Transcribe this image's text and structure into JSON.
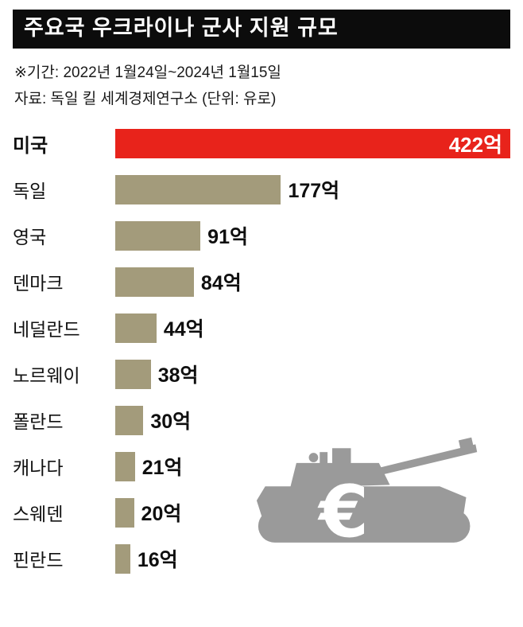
{
  "header": {
    "title": "주요국 우크라이나 군사 지원 규모"
  },
  "meta": {
    "period": "※기간: 2022년 1월24일~2024년 1월15일",
    "source": "자료: 독일 킬 세계경제연구소 (단위: 유로)"
  },
  "chart_data": {
    "type": "bar",
    "orientation": "horizontal",
    "title": "주요국 우크라이나 군사 지원 규모",
    "unit": "억 유로",
    "categories": [
      "미국",
      "독일",
      "영국",
      "덴마크",
      "네덜란드",
      "노르웨이",
      "폴란드",
      "캐나다",
      "스웨덴",
      "핀란드"
    ],
    "values": [
      422,
      177,
      91,
      84,
      44,
      38,
      30,
      21,
      20,
      16
    ],
    "value_labels": [
      "422억",
      "177억",
      "91억",
      "84억",
      "44억",
      "38억",
      "30억",
      "21억",
      "20억",
      "16억"
    ],
    "xlim": [
      0,
      422
    ],
    "highlight_index": 0,
    "legend": "none",
    "grid": false,
    "colors": {
      "highlight_bar": "#e8231b",
      "bar": "#a39b7b",
      "title_bg": "#0c0c0c",
      "title_text": "#ffffff",
      "tank": "#9a9a9a"
    }
  },
  "decor": {
    "euro_symbol": "€"
  }
}
